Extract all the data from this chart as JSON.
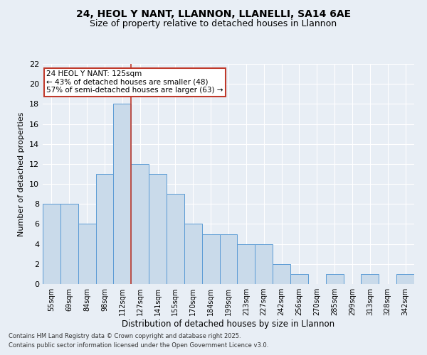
{
  "title1": "24, HEOL Y NANT, LLANNON, LLANELLI, SA14 6AE",
  "title2": "Size of property relative to detached houses in Llannon",
  "xlabel": "Distribution of detached houses by size in Llannon",
  "ylabel": "Number of detached properties",
  "categories": [
    "55sqm",
    "69sqm",
    "84sqm",
    "98sqm",
    "112sqm",
    "127sqm",
    "141sqm",
    "155sqm",
    "170sqm",
    "184sqm",
    "199sqm",
    "213sqm",
    "227sqm",
    "242sqm",
    "256sqm",
    "270sqm",
    "285sqm",
    "299sqm",
    "313sqm",
    "328sqm",
    "342sqm"
  ],
  "values": [
    8,
    8,
    6,
    11,
    18,
    12,
    11,
    9,
    6,
    5,
    5,
    4,
    4,
    2,
    1,
    0,
    1,
    0,
    1,
    0,
    1
  ],
  "bar_color": "#c9daea",
  "bar_edge_color": "#5b9bd5",
  "vline_x": 4.5,
  "vline_color": "#c0392b",
  "annotation_text": "24 HEOL Y NANT: 125sqm\n← 43% of detached houses are smaller (48)\n57% of semi-detached houses are larger (63) →",
  "annotation_box_color": "#ffffff",
  "annotation_box_edge": "#c0392b",
  "ylim": [
    0,
    22
  ],
  "yticks": [
    0,
    2,
    4,
    6,
    8,
    10,
    12,
    14,
    16,
    18,
    20,
    22
  ],
  "background_color": "#e8eef5",
  "grid_color": "#ffffff",
  "footer1": "Contains HM Land Registry data © Crown copyright and database right 2025.",
  "footer2": "Contains public sector information licensed under the Open Government Licence v3.0."
}
